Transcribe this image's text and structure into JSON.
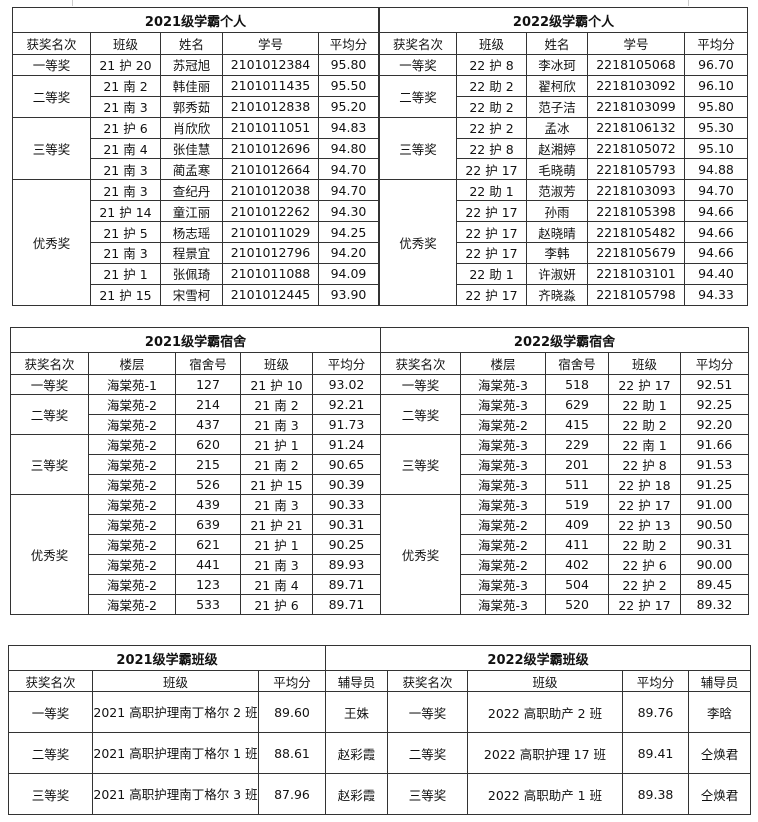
{
  "individual": [
    {
      "title": "2021级学霸个人",
      "headers": [
        "获奖名次",
        "班级",
        "姓名",
        "学号",
        "平均分"
      ],
      "groups": [
        {
          "award": "一等奖",
          "rows": [
            [
              "21 护 20",
              "苏冠旭",
              "2101012384",
              "95.80"
            ]
          ]
        },
        {
          "award": "二等奖",
          "rows": [
            [
              "21 南 2",
              "韩佳丽",
              "2101011435",
              "95.50"
            ],
            [
              "21 南 3",
              "郭秀茹",
              "2101012838",
              "95.20"
            ]
          ]
        },
        {
          "award": "三等奖",
          "rows": [
            [
              "21 护 6",
              "肖欣欣",
              "2101011051",
              "94.83"
            ],
            [
              "21 南 4",
              "张佳慧",
              "2101012696",
              "94.80"
            ],
            [
              "21 南 3",
              "蔺孟寒",
              "2101012664",
              "94.70"
            ]
          ]
        },
        {
          "award": "优秀奖",
          "rows": [
            [
              "21 南 3",
              "查纪丹",
              "2101012038",
              "94.70"
            ],
            [
              "21 护 14",
              "童江丽",
              "2101012262",
              "94.30"
            ],
            [
              "21 护 5",
              "杨志瑶",
              "2101011029",
              "94.25"
            ],
            [
              "21 南 3",
              "程景宜",
              "2101012796",
              "94.20"
            ],
            [
              "21 护 1",
              "张佩琦",
              "2101011088",
              "94.09"
            ],
            [
              "21 护 15",
              "宋雪柯",
              "2101012445",
              "93.90"
            ]
          ]
        }
      ]
    },
    {
      "title": "2022级学霸个人",
      "headers": [
        "获奖名次",
        "班级",
        "姓名",
        "学号",
        "平均分"
      ],
      "groups": [
        {
          "award": "一等奖",
          "rows": [
            [
              "22 护 8",
              "李冰珂",
              "2218105068",
              "96.70"
            ]
          ]
        },
        {
          "award": "二等奖",
          "rows": [
            [
              "22 助 2",
              "翟柯欣",
              "2218103092",
              "96.10"
            ],
            [
              "22 助 2",
              "范子洁",
              "2218103099",
              "95.80"
            ]
          ]
        },
        {
          "award": "三等奖",
          "rows": [
            [
              "22 护 2",
              "孟冰",
              "2218106132",
              "95.30"
            ],
            [
              "22 护 8",
              "赵湘婷",
              "2218105072",
              "95.10"
            ],
            [
              "22 护 17",
              "毛晓萌",
              "2218105793",
              "94.88"
            ]
          ]
        },
        {
          "award": "优秀奖",
          "rows": [
            [
              "22 助 1",
              "范淑芳",
              "2218103093",
              "94.70"
            ],
            [
              "22 护 17",
              "孙雨",
              "2218105398",
              "94.66"
            ],
            [
              "22 护 17",
              "赵晓晴",
              "2218105482",
              "94.66"
            ],
            [
              "22 护 17",
              "李韩",
              "2218105679",
              "94.66"
            ],
            [
              "22 助 1",
              "许淑妍",
              "2218103101",
              "94.40"
            ],
            [
              "22 护 17",
              "齐晓淼",
              "2218105798",
              "94.33"
            ]
          ]
        }
      ]
    }
  ],
  "dorm": [
    {
      "title": "2021级学霸宿舍",
      "headers": [
        "获奖名次",
        "楼层",
        "宿舍号",
        "班级",
        "平均分"
      ],
      "groups": [
        {
          "award": "一等奖",
          "rows": [
            [
              "海棠苑-1",
              "127",
              "21 护 10",
              "93.02"
            ]
          ]
        },
        {
          "award": "二等奖",
          "rows": [
            [
              "海棠苑-2",
              "214",
              "21 南 2",
              "92.21"
            ],
            [
              "海棠苑-2",
              "437",
              "21 南 3",
              "91.73"
            ]
          ]
        },
        {
          "award": "三等奖",
          "rows": [
            [
              "海棠苑-2",
              "620",
              "21 护 1",
              "91.24"
            ],
            [
              "海棠苑-2",
              "215",
              "21 南 2",
              "90.65"
            ],
            [
              "海棠苑-2",
              "526",
              "21 护 15",
              "90.39"
            ]
          ]
        },
        {
          "award": "优秀奖",
          "rows": [
            [
              "海棠苑-2",
              "439",
              "21 南 3",
              "90.33"
            ],
            [
              "海棠苑-2",
              "639",
              "21 护 21",
              "90.31"
            ],
            [
              "海棠苑-2",
              "621",
              "21 护 1",
              "90.25"
            ],
            [
              "海棠苑-2",
              "441",
              "21 南 3",
              "89.93"
            ],
            [
              "海棠苑-2",
              "123",
              "21 南 4",
              "89.71"
            ],
            [
              "海棠苑-2",
              "533",
              "21 护 6",
              "89.71"
            ]
          ]
        }
      ]
    },
    {
      "title": "2022级学霸宿舍",
      "headers": [
        "获奖名次",
        "楼层",
        "宿舍号",
        "班级",
        "平均分"
      ],
      "groups": [
        {
          "award": "一等奖",
          "rows": [
            [
              "海棠苑-3",
              "518",
              "22 护 17",
              "92.51"
            ]
          ]
        },
        {
          "award": "二等奖",
          "rows": [
            [
              "海棠苑-3",
              "629",
              "22 助 1",
              "92.25"
            ],
            [
              "海棠苑-2",
              "415",
              "22 助 2",
              "92.20"
            ]
          ]
        },
        {
          "award": "三等奖",
          "rows": [
            [
              "海棠苑-3",
              "229",
              "22 南 1",
              "91.66"
            ],
            [
              "海棠苑-3",
              "201",
              "22 护 8",
              "91.53"
            ],
            [
              "海棠苑-3",
              "511",
              "22 护 18",
              "91.25"
            ]
          ]
        },
        {
          "award": "优秀奖",
          "rows": [
            [
              "海棠苑-3",
              "519",
              "22 护 17",
              "91.00"
            ],
            [
              "海棠苑-2",
              "409",
              "22 护 13",
              "90.50"
            ],
            [
              "海棠苑-2",
              "411",
              "22 助 2",
              "90.31"
            ],
            [
              "海棠苑-2",
              "402",
              "22 护 6",
              "90.00"
            ],
            [
              "海棠苑-3",
              "504",
              "22 护 2",
              "89.45"
            ],
            [
              "海棠苑-3",
              "520",
              "22 护 17",
              "89.32"
            ]
          ]
        }
      ]
    }
  ],
  "classes": {
    "title_2021": "2021级学霸班级",
    "title_2022": "2022级学霸班级",
    "headers": [
      "获奖名次",
      "班级",
      "平均分",
      "辅导员",
      "获奖名次",
      "班级",
      "平均分",
      "辅导员"
    ],
    "rows": [
      [
        "一等奖",
        "2021 高职护理南丁格尔 2 班",
        "89.60",
        "王姝",
        "一等奖",
        "2022 高职助产 2 班",
        "89.76",
        "李晗"
      ],
      [
        "二等奖",
        "2021 高职护理南丁格尔 1 班",
        "88.61",
        "赵彩霞",
        "二等奖",
        "2022 高职护理 17 班",
        "89.41",
        "仝焕君"
      ],
      [
        "三等奖",
        "2021 高职护理南丁格尔 3 班",
        "87.96",
        "赵彩霞",
        "三等奖",
        "2022 高职助产 1 班",
        "89.38",
        "仝焕君"
      ]
    ]
  }
}
